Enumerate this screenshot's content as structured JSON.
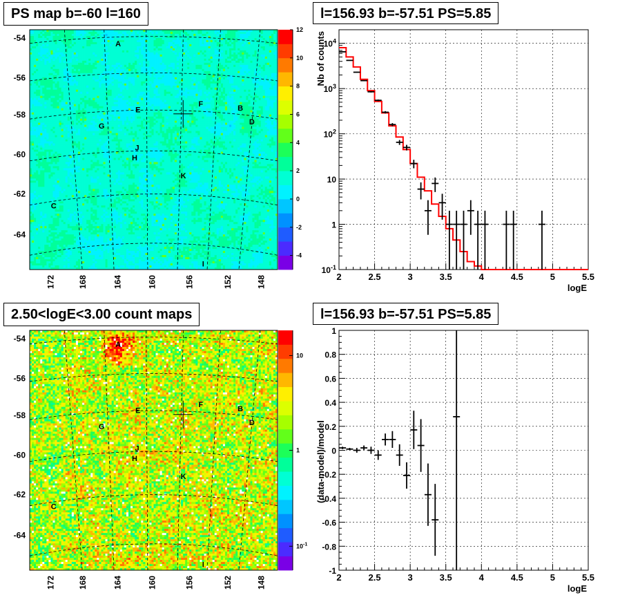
{
  "chart_data": [
    {
      "type": "heatmap",
      "title": "PS map b=-60 l=160",
      "colorbar_ticks": [
        "12",
        "10",
        "8",
        "6",
        "4",
        "2",
        "0",
        "-2",
        "-4"
      ],
      "colorbar_range": [
        -5,
        12
      ],
      "lat_ticks": [
        "-54",
        "-56",
        "-58",
        "-60",
        "-62",
        "-64"
      ],
      "lon_ticks": [
        "172",
        "168",
        "164",
        "160",
        "156",
        "152",
        "148"
      ],
      "lat_range": [
        -53.3,
        -65.3
      ],
      "lon_range": [
        175.5,
        145.5
      ],
      "sources": [
        {
          "label": "A",
          "lon": 164.8,
          "lat": -54.0
        },
        {
          "label": "F",
          "lon": 154.8,
          "lat": -57.0
        },
        {
          "label": "B",
          "lon": 150.0,
          "lat": -57.2
        },
        {
          "label": "E",
          "lon": 162.4,
          "lat": -57.3
        },
        {
          "label": "D",
          "lon": 148.6,
          "lat": -57.9
        },
        {
          "label": "G",
          "lon": 166.8,
          "lat": -58.1
        },
        {
          "label": "J",
          "lon": 162.5,
          "lat": -59.2
        },
        {
          "label": "H",
          "lon": 162.8,
          "lat": -59.7
        },
        {
          "label": "K",
          "lon": 156.9,
          "lat": -60.6
        },
        {
          "label": "C",
          "lon": 172.6,
          "lat": -62.1
        },
        {
          "label": "I",
          "lon": 154.5,
          "lat": -65.0
        }
      ],
      "marker": {
        "lon": 156.93,
        "lat": -57.51
      }
    },
    {
      "type": "line",
      "title": "l=156.93 b=-57.51 PS=5.85",
      "xlabel": "logE",
      "ylabel": "Nb of counts",
      "xlim": [
        2,
        5.5
      ],
      "ylim": [
        0.1,
        20000
      ],
      "yscale": "log",
      "grid": true,
      "x_ticks": [
        "2",
        "2.5",
        "3",
        "3.5",
        "4",
        "4.5",
        "5",
        "5.5"
      ],
      "y_ticks": [
        "10^-1",
        "1",
        "10",
        "10^2",
        "10^3",
        "10^4"
      ],
      "data_points": {
        "x": [
          2.05,
          2.15,
          2.25,
          2.35,
          2.45,
          2.55,
          2.65,
          2.75,
          2.85,
          2.95,
          3.05,
          3.15,
          3.25,
          3.35,
          3.45,
          3.55,
          3.65,
          3.75,
          3.85,
          3.95,
          4.05,
          4.35,
          4.45,
          4.85
        ],
        "y": [
          6500,
          4200,
          2300,
          1500,
          850,
          550,
          300,
          160,
          65,
          50,
          22,
          6,
          2,
          8,
          3,
          1,
          1,
          1,
          2,
          1,
          1,
          1,
          1,
          1
        ]
      },
      "model": {
        "x": [
          2.0,
          2.1,
          2.2,
          2.3,
          2.4,
          2.5,
          2.6,
          2.7,
          2.8,
          2.9,
          3.0,
          3.1,
          3.2,
          3.3,
          3.4,
          3.5,
          3.6,
          3.7,
          3.8,
          3.9,
          4.0,
          5.5
        ],
        "y": [
          8000,
          5000,
          3000,
          1600,
          900,
          520,
          290,
          150,
          85,
          45,
          22,
          11,
          5.5,
          2.8,
          1.5,
          0.8,
          0.45,
          0.25,
          0.15,
          0.12,
          0.1,
          0.1
        ]
      }
    },
    {
      "type": "heatmap",
      "title": "2.50<logE<3.00 count maps",
      "colorbar_ticks": [
        "10",
        "1",
        "10^-1"
      ],
      "colorbar_scale": "log",
      "lat_ticks": [
        "-54",
        "-56",
        "-58",
        "-60",
        "-62",
        "-64"
      ],
      "lon_ticks": [
        "172",
        "168",
        "164",
        "160",
        "156",
        "152",
        "148"
      ],
      "sources": [
        "A",
        "F",
        "B",
        "E",
        "D",
        "G",
        "J",
        "H",
        "K",
        "C",
        "I"
      ]
    },
    {
      "type": "scatter",
      "title": "l=156.93 b=-57.51 PS=5.85",
      "xlabel": "logE",
      "ylabel": "(data-model)/model",
      "xlim": [
        2,
        5.5
      ],
      "ylim": [
        -1,
        1
      ],
      "grid": true,
      "x_ticks": [
        "2",
        "2.5",
        "3",
        "3.5",
        "4",
        "4.5",
        "5",
        "5.5"
      ],
      "y_ticks": [
        "-1",
        "-0.8",
        "-0.6",
        "-0.4",
        "-0.2",
        "0",
        "0.2",
        "0.4",
        "0.6",
        "0.8",
        "1"
      ],
      "x": [
        2.05,
        2.15,
        2.25,
        2.35,
        2.45,
        2.55,
        2.65,
        2.75,
        2.85,
        2.95,
        3.05,
        3.15,
        3.25,
        3.35,
        3.65
      ],
      "y": [
        0.02,
        0.01,
        0.0,
        0.02,
        0.0,
        -0.04,
        0.09,
        0.09,
        -0.04,
        -0.21,
        0.17,
        0.04,
        -0.37,
        -0.58,
        0.28
      ],
      "yerr": [
        0.01,
        0.01,
        0.02,
        0.02,
        0.03,
        0.04,
        0.05,
        0.07,
        0.09,
        0.11,
        0.16,
        0.22,
        0.26,
        0.3,
        1.5
      ]
    }
  ]
}
